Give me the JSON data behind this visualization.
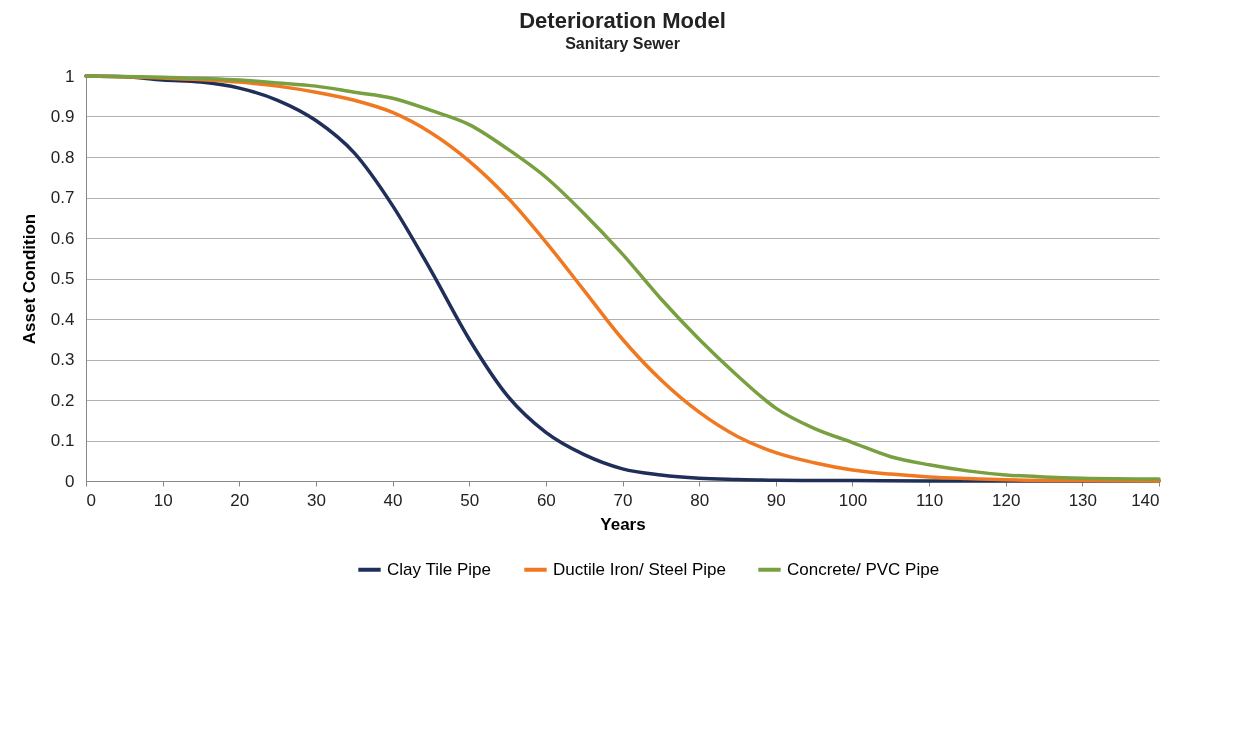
{
  "chart_data": {
    "type": "line",
    "title": "Deterioration Model",
    "subtitle": "Sanitary Sewer",
    "xlabel": "Years",
    "ylabel": "Asset Condition",
    "xlim": [
      0,
      140
    ],
    "xticks": [
      0,
      10,
      20,
      30,
      40,
      50,
      60,
      70,
      80,
      90,
      100,
      110,
      120,
      130,
      140
    ],
    "ylim": [
      0,
      1
    ],
    "yticks": [
      0,
      0.1,
      0.2,
      0.3,
      0.4,
      0.5,
      0.6,
      0.7,
      0.8,
      0.9,
      1
    ],
    "grid": "y",
    "legend": "bottom",
    "marker": "none",
    "series": [
      {
        "name": "Clay Tile Pipe",
        "color": "#1f2f5a",
        "x": [
          0,
          5,
          10,
          15,
          20,
          25,
          30,
          35,
          40,
          45,
          50,
          55,
          60,
          65,
          70,
          75,
          80,
          85,
          90,
          100,
          110,
          120,
          130,
          140
        ],
        "values": [
          1,
          0.998,
          0.99,
          0.985,
          0.97,
          0.94,
          0.89,
          0.81,
          0.68,
          0.52,
          0.35,
          0.21,
          0.12,
          0.065,
          0.03,
          0.015,
          0.007,
          0.004,
          0.002,
          0.001,
          0,
          0,
          0,
          0
        ]
      },
      {
        "name": "Ductile Iron/ Steel Pipe",
        "color": "#f07820",
        "x": [
          0,
          10,
          20,
          25,
          30,
          35,
          40,
          45,
          50,
          55,
          60,
          65,
          70,
          75,
          80,
          85,
          90,
          95,
          100,
          105,
          110,
          115,
          120,
          130,
          140
        ],
        "values": [
          1,
          0.995,
          0.985,
          0.975,
          0.96,
          0.94,
          0.91,
          0.86,
          0.79,
          0.7,
          0.59,
          0.47,
          0.35,
          0.25,
          0.17,
          0.11,
          0.07,
          0.045,
          0.027,
          0.017,
          0.01,
          0.006,
          0.003,
          0.001,
          0
        ]
      },
      {
        "name": "Concrete/ PVC Pipe",
        "color": "#78a040",
        "x": [
          0,
          10,
          20,
          25,
          30,
          35,
          40,
          45,
          50,
          55,
          60,
          65,
          70,
          75,
          80,
          85,
          90,
          95,
          100,
          105,
          110,
          115,
          120,
          125,
          130,
          140
        ],
        "values": [
          1,
          0.997,
          0.99,
          0.983,
          0.975,
          0.96,
          0.945,
          0.915,
          0.88,
          0.82,
          0.75,
          0.66,
          0.56,
          0.45,
          0.35,
          0.26,
          0.18,
          0.13,
          0.095,
          0.06,
          0.04,
          0.025,
          0.015,
          0.01,
          0.007,
          0.005
        ]
      }
    ]
  }
}
